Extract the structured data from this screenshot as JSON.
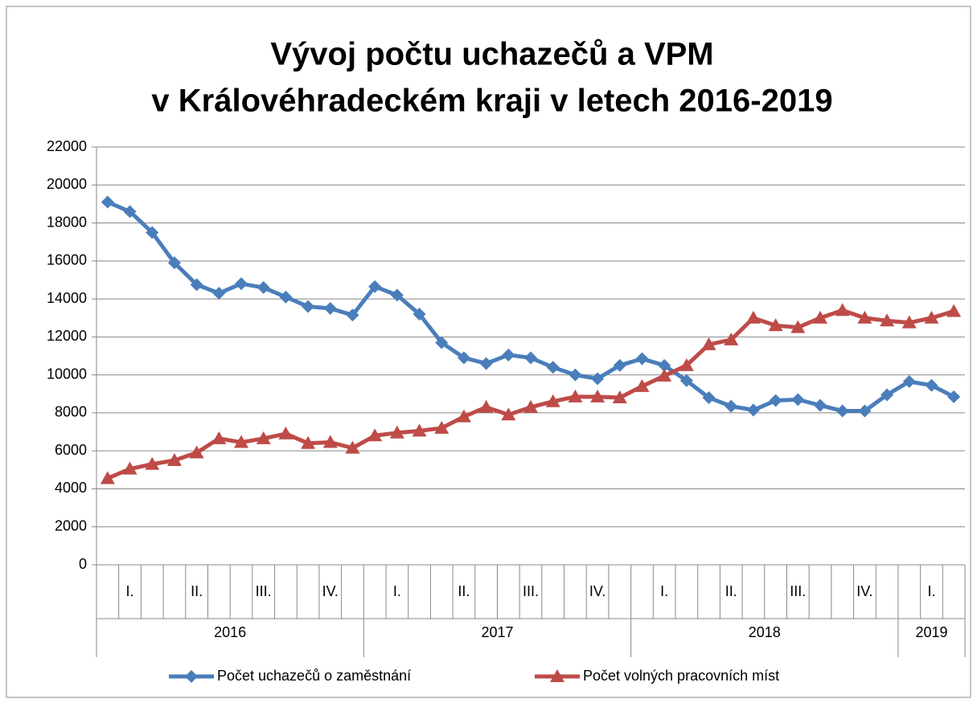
{
  "chart_data": {
    "type": "line",
    "title": "Vývoj počtu uchazečů a VPM",
    "subtitle": "v Královéhradeckém kraji v letech 2016-2019",
    "categories": [
      null,
      null,
      null,
      null,
      null,
      null,
      null,
      null,
      null,
      null,
      null,
      null,
      null,
      null,
      null,
      null,
      null,
      null,
      null,
      null,
      null,
      null,
      null,
      null,
      null,
      null,
      null,
      null,
      null,
      null,
      null,
      null,
      null,
      null,
      null,
      null,
      null,
      null,
      null
    ],
    "quarters": [
      "I.",
      "II.",
      "III.",
      "IV.",
      "I.",
      "II.",
      "III.",
      "IV.",
      "I.",
      "II.",
      "III.",
      "IV.",
      "I."
    ],
    "years": [
      "2016",
      "2017",
      "2018",
      "2019"
    ],
    "series": [
      {
        "name": "Počet uchazečů o zaměstnání",
        "color": "#4a7ebb",
        "marker": "diamond",
        "values": [
          19100,
          18600,
          17500,
          15900,
          14750,
          14300,
          14800,
          14600,
          14100,
          13600,
          13500,
          13150,
          14650,
          14200,
          13200,
          11700,
          10900,
          10600,
          11050,
          10900,
          10400,
          10000,
          9800,
          10500,
          10850,
          10500,
          9700,
          8800,
          8350,
          8150,
          8650,
          8700,
          8400,
          8100,
          8100,
          8950,
          9650,
          9450,
          8850
        ]
      },
      {
        "name": "Počet volných pracovních míst",
        "color": "#be4b48",
        "marker": "triangle",
        "values": [
          4550,
          5050,
          5300,
          5500,
          5900,
          6650,
          6450,
          6650,
          6900,
          6400,
          6450,
          6150,
          6800,
          6950,
          7050,
          7200,
          7800,
          8300,
          7900,
          8300,
          8600,
          8850,
          8850,
          8800,
          9400,
          9950,
          10500,
          11600,
          11850,
          13000,
          12600,
          12500,
          13000,
          13400,
          13000,
          12850,
          12750,
          13000,
          13350
        ]
      }
    ],
    "ylim": [
      0,
      22000
    ],
    "yticks": [
      0,
      2000,
      4000,
      6000,
      8000,
      10000,
      12000,
      14000,
      16000,
      18000,
      20000,
      22000
    ],
    "grid": true,
    "legend": "bottom"
  }
}
